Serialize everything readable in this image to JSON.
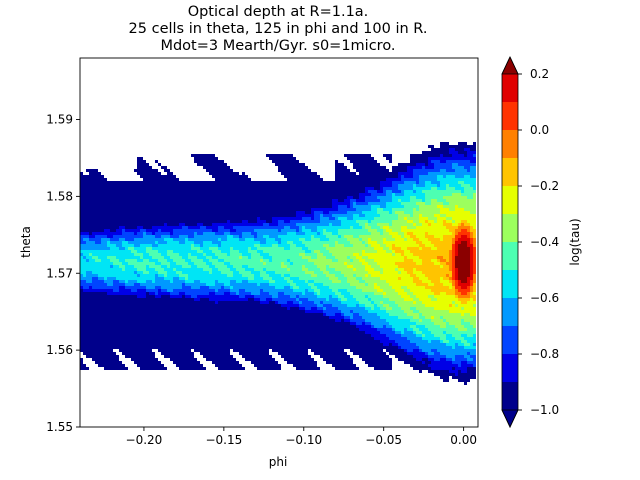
{
  "chart_data": {
    "type": "heatmap",
    "title": [
      "Optical depth at R=1.1a.",
      "25 cells in theta, 125 in phi and 100 in R.",
      "Mdot=3 Mearth/Gyr. s0=1micro."
    ],
    "xlabel": "phi",
    "ylabel": "theta",
    "xlim": [
      -0.24,
      0.009
    ],
    "ylim": [
      1.55,
      1.598
    ],
    "xticks": [
      -0.2,
      -0.15,
      -0.1,
      -0.05,
      0.0
    ],
    "xtick_labels": [
      "−0.20",
      "−0.15",
      "−0.10",
      "−0.05",
      "0.00"
    ],
    "yticks": [
      1.55,
      1.56,
      1.57,
      1.58,
      1.59
    ],
    "ytick_labels": [
      "1.55",
      "1.56",
      "1.57",
      "1.58",
      "1.59"
    ],
    "colorbar": {
      "label": "log(tau)",
      "range": [
        -1.0,
        0.2
      ],
      "levels": [
        -1.0,
        -0.9,
        -0.8,
        -0.7,
        -0.6,
        -0.5,
        -0.4,
        -0.3,
        -0.2,
        -0.1,
        0.0,
        0.1,
        0.2
      ],
      "colors": [
        "#00008b",
        "#0000e6",
        "#0044ff",
        "#0099ff",
        "#00e5f5",
        "#4dffb2",
        "#9cff5e",
        "#e6ff00",
        "#ffc400",
        "#ff8000",
        "#ff3300",
        "#e00000",
        "#8b0000"
      ],
      "ticks": [
        -1.0,
        -0.8,
        -0.6,
        -0.4,
        -0.2,
        0.0,
        0.2
      ],
      "tick_labels": [
        "−1.0",
        "−0.8",
        "−0.6",
        "−0.4",
        "−0.2",
        "0.0",
        "0.2"
      ],
      "extend": "both"
    },
    "field": {
      "description_units": "log10 optical depth over (phi, theta)",
      "background_level": -1.0,
      "band_center_theta": 1.5715,
      "peak_phi": 0.0,
      "peak_theta": 1.5715,
      "peak_value": 0.2
    }
  }
}
